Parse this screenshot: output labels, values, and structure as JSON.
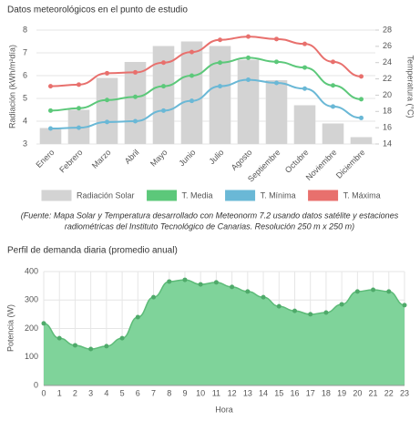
{
  "chart_data": [
    {
      "type": "combo",
      "title": "Datos meteorológicos en el punto de estudio",
      "categories": [
        "Enero",
        "Febrero",
        "Marzo",
        "Abril",
        "Mayo",
        "Junio",
        "Julio",
        "Agosto",
        "Septiembre",
        "Octubre",
        "Noviembre",
        "Diciembre"
      ],
      "ylabel": "Radiación (kWh/m²día)",
      "y2label": "Temperatura (°C)",
      "ylim": [
        3,
        8
      ],
      "yticks": [
        3,
        4,
        5,
        6,
        7,
        8
      ],
      "y2lim": [
        14,
        28
      ],
      "y2ticks": [
        14,
        16,
        18,
        20,
        22,
        24,
        26,
        28
      ],
      "grid": true,
      "series": [
        {
          "name": "Radiación Solar",
          "type": "bar",
          "color": "#d3d3d3",
          "values": [
            3.7,
            4.5,
            5.9,
            6.6,
            7.3,
            7.5,
            7.3,
            6.7,
            5.8,
            4.7,
            3.9,
            3.3
          ]
        },
        {
          "name": "T. Media",
          "type": "line",
          "axis": "y2",
          "color": "#5cc87a",
          "values": [
            18.1,
            18.4,
            19.4,
            19.8,
            21.1,
            22.4,
            24.0,
            24.6,
            24.1,
            23.4,
            21.2,
            19.5
          ]
        },
        {
          "name": "T. Mínima",
          "type": "line",
          "axis": "y2",
          "color": "#6ab8d6",
          "values": [
            15.9,
            16.0,
            16.7,
            16.8,
            18.1,
            19.3,
            21.1,
            21.9,
            21.5,
            20.8,
            18.6,
            17.2
          ]
        },
        {
          "name": "T. Máxima",
          "type": "line",
          "axis": "y2",
          "color": "#e8706d",
          "values": [
            21.1,
            21.3,
            22.7,
            22.8,
            24.0,
            25.3,
            26.8,
            27.2,
            26.9,
            26.3,
            24.1,
            22.3
          ]
        }
      ],
      "note": [
        "(Fuente: Mapa Solar y Temperatura desarrollado con Meteonorm 7.2  usando datos satélite y estaciones",
        "radiométricas del Instituto Tecnológico de Canarias. Resolución 250 m x 250 m)"
      ]
    },
    {
      "type": "area",
      "title": "Perfil de demanda diaria (promedio anual)",
      "xlabel": "Hora",
      "ylabel": "Potencia (W)",
      "x": [
        0,
        1,
        2,
        3,
        4,
        5,
        6,
        7,
        8,
        9,
        10,
        11,
        12,
        13,
        14,
        15,
        16,
        17,
        18,
        19,
        20,
        21,
        22,
        23
      ],
      "values": [
        218,
        166,
        141,
        128,
        138,
        166,
        240,
        310,
        365,
        371,
        355,
        362,
        346,
        330,
        310,
        278,
        262,
        250,
        256,
        285,
        330,
        336,
        330,
        282
      ],
      "color": "#7fd39a",
      "xlim": [
        0,
        23
      ],
      "xticks": [
        0,
        1,
        2,
        3,
        4,
        5,
        6,
        7,
        8,
        9,
        10,
        11,
        12,
        13,
        14,
        15,
        16,
        17,
        18,
        19,
        20,
        21,
        22,
        23
      ],
      "ylim": [
        0,
        400
      ],
      "yticks": [
        0,
        100,
        200,
        300,
        400
      ],
      "grid": true
    }
  ]
}
